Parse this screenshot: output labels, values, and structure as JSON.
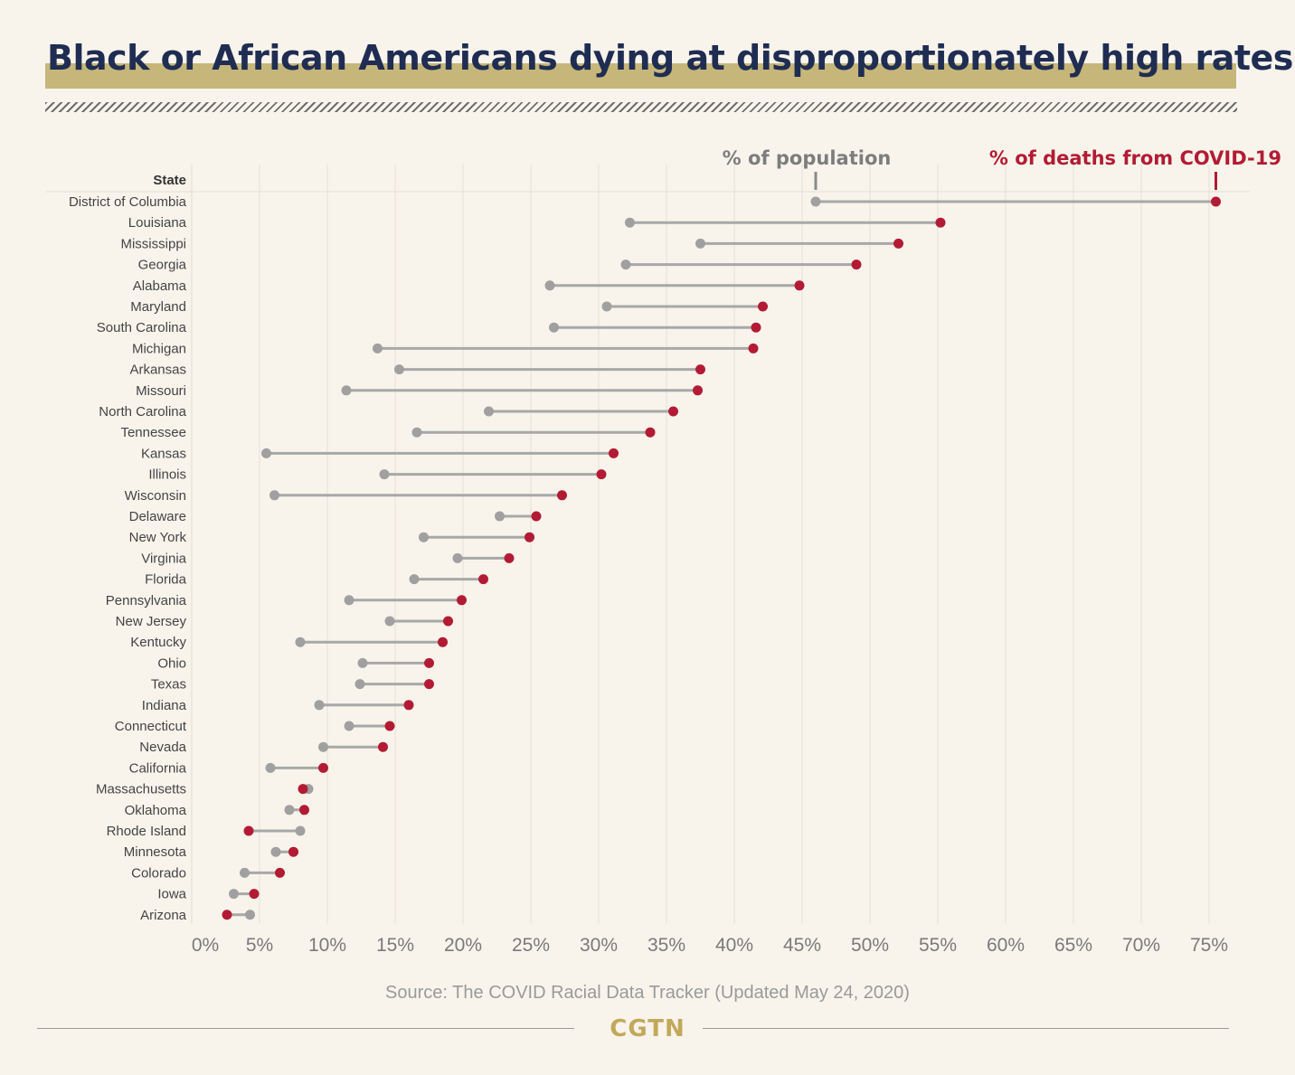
{
  "title": "Black or African Americans dying at disproportionately high rates",
  "source": "Source: The COVID Racial Data Tracker (Updated May 24, 2020)",
  "logo": "CGTN",
  "colors": {
    "population": "#a0a0a0",
    "deaths": "#b31b34",
    "title": "#1f2d52",
    "accent": "#c6b67a",
    "background": "#f8f4ec"
  },
  "chart_data": {
    "type": "dumbbell",
    "row_header": "State",
    "legend": {
      "population": "% of population",
      "deaths": "% of deaths from COVID-19"
    },
    "x_ticks": [
      "0%",
      "5%",
      "10%",
      "15%",
      "20%",
      "25%",
      "30%",
      "35%",
      "40%",
      "45%",
      "50%",
      "55%",
      "60%",
      "65%",
      "70%",
      "75%"
    ],
    "xlim": [
      0,
      78
    ],
    "grid": true,
    "series": [
      {
        "name": "% of population",
        "key": "pop"
      },
      {
        "name": "% of deaths from COVID-19",
        "key": "death"
      }
    ],
    "rows": [
      {
        "state": "District of Columbia",
        "pop": 46.0,
        "death": 75.5
      },
      {
        "state": "Louisiana",
        "pop": 32.3,
        "death": 55.2
      },
      {
        "state": "Mississippi",
        "pop": 37.5,
        "death": 52.1
      },
      {
        "state": "Georgia",
        "pop": 32.0,
        "death": 49.0
      },
      {
        "state": "Alabama",
        "pop": 26.4,
        "death": 44.8
      },
      {
        "state": "Maryland",
        "pop": 30.6,
        "death": 42.1
      },
      {
        "state": "South Carolina",
        "pop": 26.7,
        "death": 41.6
      },
      {
        "state": "Michigan",
        "pop": 13.7,
        "death": 41.4
      },
      {
        "state": "Arkansas",
        "pop": 15.3,
        "death": 37.5
      },
      {
        "state": "Missouri",
        "pop": 11.4,
        "death": 37.3
      },
      {
        "state": "North Carolina",
        "pop": 21.9,
        "death": 35.5
      },
      {
        "state": "Tennessee",
        "pop": 16.6,
        "death": 33.8
      },
      {
        "state": "Kansas",
        "pop": 5.5,
        "death": 31.1
      },
      {
        "state": "Illinois",
        "pop": 14.2,
        "death": 30.2
      },
      {
        "state": "Wisconsin",
        "pop": 6.1,
        "death": 27.3
      },
      {
        "state": "Delaware",
        "pop": 22.7,
        "death": 25.4
      },
      {
        "state": "New York",
        "pop": 17.1,
        "death": 24.9
      },
      {
        "state": "Virginia",
        "pop": 19.6,
        "death": 23.4
      },
      {
        "state": "Florida",
        "pop": 16.4,
        "death": 21.5
      },
      {
        "state": "Pennsylvania",
        "pop": 11.6,
        "death": 19.9
      },
      {
        "state": "New Jersey",
        "pop": 14.6,
        "death": 18.9
      },
      {
        "state": "Kentucky",
        "pop": 8.0,
        "death": 18.5
      },
      {
        "state": "Ohio",
        "pop": 12.6,
        "death": 17.5
      },
      {
        "state": "Texas",
        "pop": 12.4,
        "death": 17.5
      },
      {
        "state": "Indiana",
        "pop": 9.4,
        "death": 16.0
      },
      {
        "state": "Connecticut",
        "pop": 11.6,
        "death": 14.6
      },
      {
        "state": "Nevada",
        "pop": 9.7,
        "death": 14.1
      },
      {
        "state": "California",
        "pop": 5.8,
        "death": 9.7
      },
      {
        "state": "Massachusetts",
        "pop": 8.6,
        "death": 8.2
      },
      {
        "state": "Oklahoma",
        "pop": 7.2,
        "death": 8.3
      },
      {
        "state": "Rhode Island",
        "pop": 8.0,
        "death": 4.2
      },
      {
        "state": "Minnesota",
        "pop": 6.2,
        "death": 7.5
      },
      {
        "state": "Colorado",
        "pop": 3.9,
        "death": 6.5
      },
      {
        "state": "Iowa",
        "pop": 3.1,
        "death": 4.6
      },
      {
        "state": "Arizona",
        "pop": 4.3,
        "death": 2.6
      }
    ]
  }
}
